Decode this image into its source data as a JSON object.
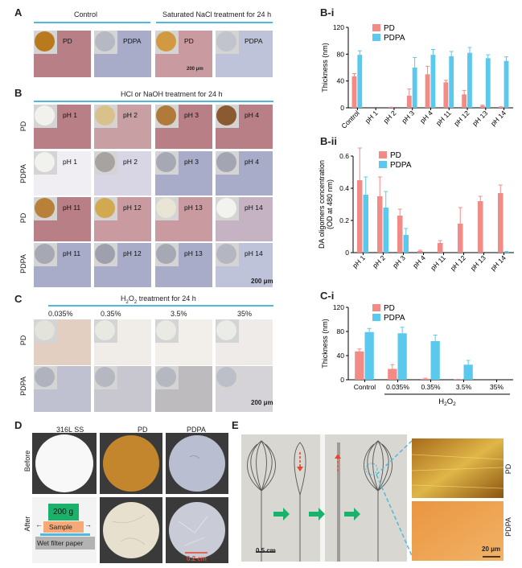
{
  "panels": {
    "A": "A",
    "Bi": "B-i",
    "B": "B",
    "Bii": "B-ii",
    "C": "C",
    "Ci": "C-i",
    "D": "D",
    "E": "E"
  },
  "A": {
    "control": "Control",
    "nacl": "Saturated NaCl treatment for 24 h",
    "pd": "PD",
    "pdpa": "PDPA",
    "scale": "200 μm"
  },
  "B": {
    "header": "HCl or NaOH treatment for 24 h",
    "row_pd": "PD",
    "row_pdpa": "PDPA",
    "scale": "200 μm",
    "ph_top": [
      "pH 1",
      "pH 2",
      "pH 3",
      "pH 4"
    ],
    "ph_bottom": [
      "pH 11",
      "pH 12",
      "pH 13",
      "pH 14"
    ]
  },
  "C": {
    "header": "H2O2 treatment for 24 h",
    "conc": [
      "0.035%",
      "0.35%",
      "3.5%",
      "35%"
    ],
    "row_pd": "PD",
    "row_pdpa": "PDPA",
    "scale": "200 μm"
  },
  "D": {
    "cols": [
      "316L SS",
      "PD",
      "PDPA"
    ],
    "before": "Before",
    "after": "After",
    "weight": "200 g",
    "sample": "Sample",
    "paper": "Wet filter paper",
    "scale": "0.2 cm"
  },
  "E": {
    "scale1": "0.5 cm",
    "scale2": "20 μm",
    "pd": "PD",
    "pdpa": "PDPA"
  },
  "colors": {
    "pd": "#f28b86",
    "pdpa": "#5bc8ee",
    "cyan": "#4fb9dd",
    "arrow": "#1ab26b",
    "red": "#e8452f"
  },
  "chart_data": [
    {
      "id": "B-i",
      "type": "bar",
      "ylabel": "Thickness (nm)",
      "ylim": [
        0,
        120
      ],
      "yticks": [
        0,
        40,
        80,
        120
      ],
      "categories": [
        "Control",
        "pH 1",
        "pH 2",
        "pH 3",
        "pH 4",
        "pH 11",
        "pH 12",
        "pH 13",
        "pH 14"
      ],
      "series": [
        {
          "name": "PD",
          "values": [
            47,
            0,
            0.5,
            18,
            50,
            38,
            20,
            3,
            1
          ],
          "err": [
            4,
            0,
            0.5,
            10,
            12,
            3,
            6,
            1,
            0.5
          ]
        },
        {
          "name": "PDPA",
          "values": [
            79,
            0,
            0,
            60,
            79,
            77,
            82,
            74,
            70
          ],
          "err": [
            6,
            0,
            0,
            15,
            8,
            7,
            8,
            5,
            6
          ]
        }
      ]
    },
    {
      "id": "B-ii",
      "type": "bar",
      "ylabel": "DA oligomers concentration",
      "ylabel2": "(OD at 480 nm)",
      "ylim": [
        0,
        0.6
      ],
      "yticks": [
        0,
        0.2,
        0.4,
        0.6
      ],
      "categories": [
        "pH 1",
        "pH 2",
        "pH 3",
        "pH 4",
        "pH 11",
        "pH 12",
        "pH 13",
        "pH 14"
      ],
      "series": [
        {
          "name": "PD",
          "values": [
            0.45,
            0.35,
            0.23,
            0.01,
            0.06,
            0.18,
            0.32,
            0.37
          ],
          "err": [
            0.2,
            0.12,
            0.04,
            0.005,
            0.015,
            0.1,
            0.03,
            0.05
          ]
        },
        {
          "name": "PDPA",
          "values": [
            0.36,
            0.28,
            0.11,
            0,
            0,
            0,
            0,
            0.005
          ],
          "err": [
            0.11,
            0.1,
            0.04,
            0,
            0,
            0,
            0,
            0.003
          ]
        }
      ]
    },
    {
      "id": "C-i",
      "type": "bar",
      "ylabel": "Thickness (nm)",
      "ylim": [
        0,
        120
      ],
      "yticks": [
        0,
        40,
        80,
        120
      ],
      "xgroup": "H2O2",
      "categories": [
        "Control",
        "0.035%",
        "0.35%",
        "3.5%",
        "35%"
      ],
      "series": [
        {
          "name": "PD",
          "values": [
            47,
            18,
            1.5,
            0.5,
            0
          ],
          "err": [
            4,
            7,
            1,
            0.3,
            0
          ]
        },
        {
          "name": "PDPA",
          "values": [
            79,
            77,
            64,
            25,
            0
          ],
          "err": [
            6,
            10,
            10,
            7,
            0
          ]
        }
      ]
    }
  ]
}
